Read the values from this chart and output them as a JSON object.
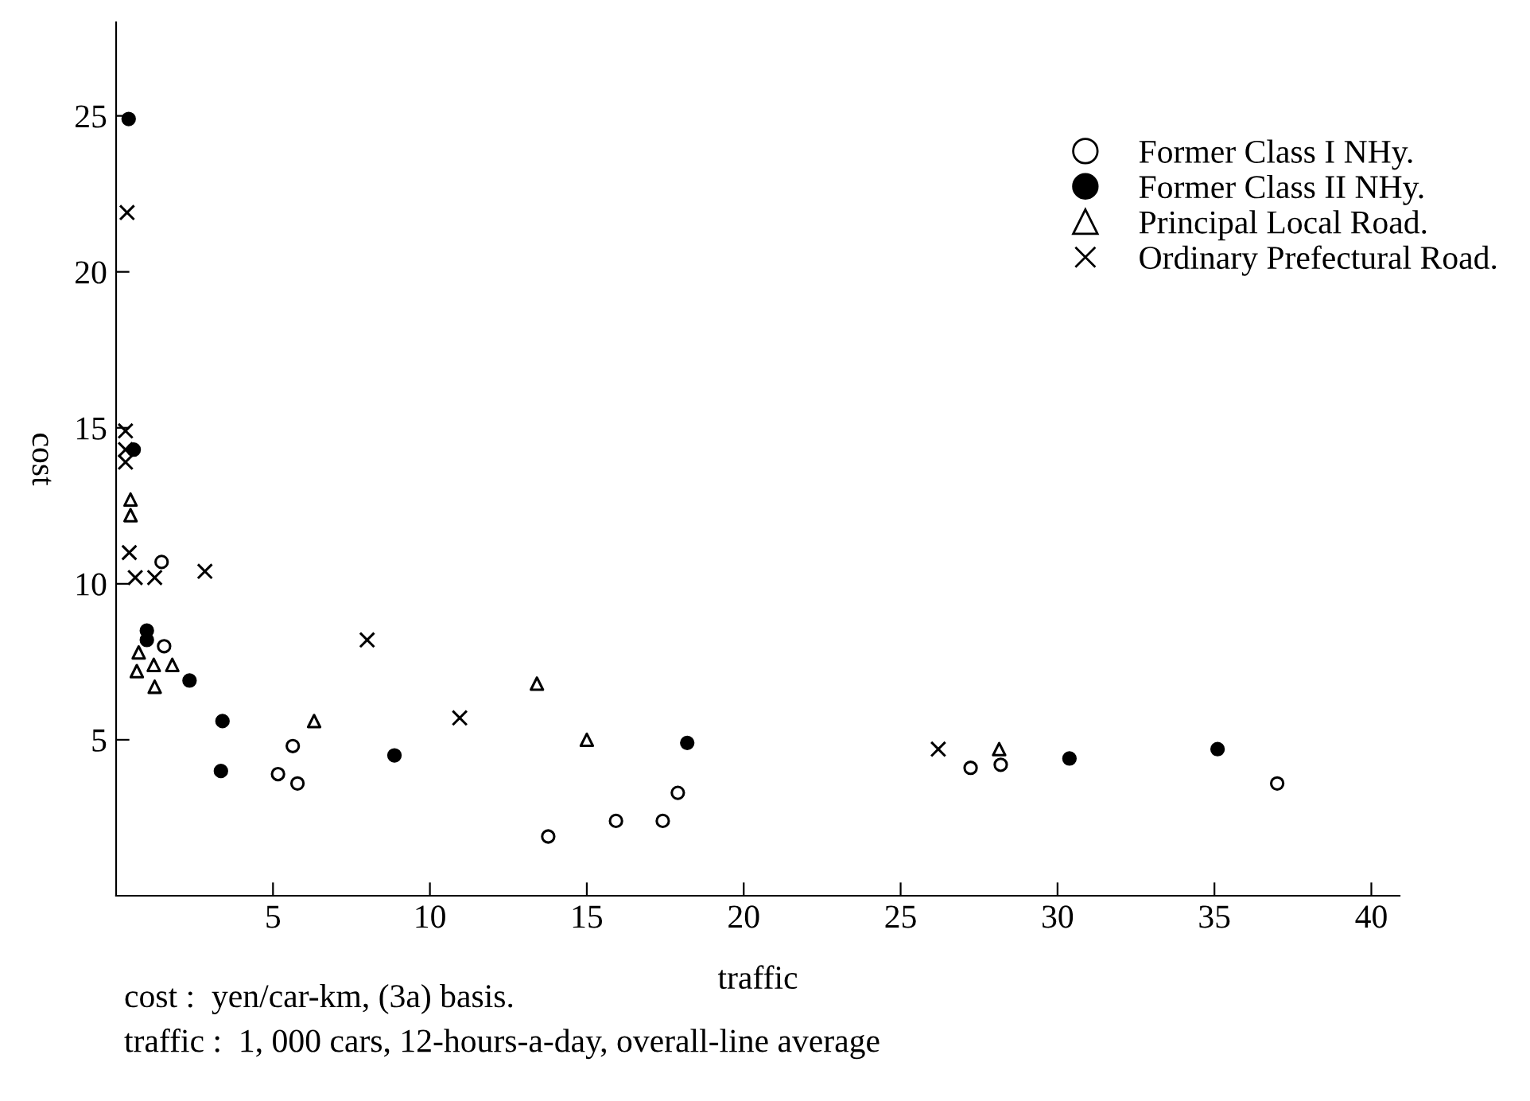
{
  "chart_data": {
    "type": "scatter",
    "xlabel": "traffic",
    "ylabel": "cost",
    "xlim": [
      0,
      40.9
    ],
    "ylim": [
      0,
      28
    ],
    "xticks": [
      5,
      10,
      15,
      20,
      25,
      30,
      35,
      40
    ],
    "yticks": [
      5,
      10,
      15,
      20,
      25
    ],
    "legend": "top right",
    "grid": false,
    "annotations": [
      "cost :  yen/car-km, (3a) basis.",
      "traffic :  1, 000 cars, 12-hours-a-day, overall-line average"
    ],
    "series": [
      {
        "name": "Former Class I NHy.",
        "color": "#ffffff",
        "marker": "circle",
        "x": [
          1.45,
          1.53,
          5.63,
          5.16,
          5.78,
          17.9,
          15.93,
          17.42,
          13.77,
          27.23,
          28.19,
          37.0
        ],
        "values": [
          10.7,
          8.0,
          4.8,
          3.9,
          3.6,
          3.3,
          2.4,
          2.4,
          1.9,
          4.1,
          4.2,
          3.6
        ]
      },
      {
        "name": "Former Class II NHy.",
        "color": "#000000",
        "marker": "circle",
        "x": [
          0.4,
          0.56,
          0.98,
          0.98,
          2.34,
          3.39,
          3.34,
          8.87,
          18.2,
          30.38,
          35.1
        ],
        "values": [
          24.9,
          14.3,
          8.5,
          8.2,
          6.9,
          5.6,
          4.0,
          4.5,
          4.9,
          4.4,
          4.7
        ]
      },
      {
        "name": "Principal Local Road.",
        "color": "#ffffff",
        "marker": "triangle",
        "x": [
          0.46,
          0.46,
          0.72,
          1.2,
          1.79,
          0.66,
          1.23,
          6.31,
          13.41,
          15.0,
          28.14
        ],
        "values": [
          12.7,
          12.2,
          7.8,
          7.4,
          7.4,
          7.2,
          6.7,
          5.6,
          6.8,
          5.0,
          4.7
        ]
      },
      {
        "name": "Ordinary Prefectural Road.",
        "color": "#000000",
        "marker": "cross",
        "x": [
          0.35,
          0.3,
          0.3,
          0.3,
          0.42,
          2.83,
          0.61,
          1.23,
          8.0,
          10.95,
          26.2
        ],
        "values": [
          21.9,
          14.9,
          14.3,
          13.9,
          11.0,
          10.4,
          10.2,
          10.2,
          8.2,
          5.7,
          4.7
        ]
      }
    ]
  }
}
